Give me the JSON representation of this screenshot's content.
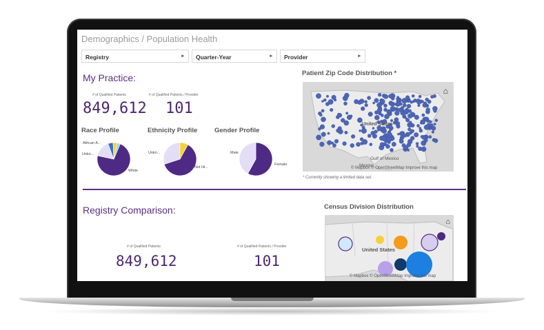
{
  "header": {
    "title": "Demographics / Population Health"
  },
  "filters": [
    {
      "label": "Registry"
    },
    {
      "label": "Quarter-Year"
    },
    {
      "label": "Provider"
    }
  ],
  "practice": {
    "title": "My Practice:",
    "kpi1": {
      "label": "# of Qualified Patients",
      "value": "849,612"
    },
    "kpi2": {
      "label": "# of Qualified Patients / Provider",
      "value": "101"
    }
  },
  "race": {
    "title": "Race Profile",
    "labels": [
      "African A...",
      "Unkn...",
      "White"
    ],
    "slices": [
      {
        "value": 0.72,
        "color": "#4e2a84"
      },
      {
        "value": 0.16,
        "color": "#e3def5"
      },
      {
        "value": 0.05,
        "color": "#3d6fc2"
      },
      {
        "value": 0.04,
        "color": "#f4d13b"
      },
      {
        "value": 0.03,
        "color": "#9fd3ec"
      }
    ]
  },
  "ethnicity": {
    "title": "Ethnicity Profile",
    "labels": [
      "Unkn...",
      "Not Hi..."
    ],
    "slices": [
      {
        "value": 0.62,
        "color": "#4e2a84"
      },
      {
        "value": 0.3,
        "color": "#e3def5"
      },
      {
        "value": 0.08,
        "color": "#f4d13b"
      }
    ]
  },
  "gender": {
    "title": "Gender Profile",
    "labels": [
      "Male",
      "Female"
    ],
    "slices": [
      {
        "value": 0.58,
        "color": "#4e2a84"
      },
      {
        "value": 0.42,
        "color": "#e3def5"
      }
    ]
  },
  "zip_map": {
    "title": "Patient Zip Code Distribution *",
    "overlay_labels": [
      "United States",
      "Gulf of Mexico",
      "Mexico"
    ],
    "attribution": "© Mapbox © OpenStreetMap Improve this map",
    "note": "* Currently showing a limited data set."
  },
  "registry": {
    "title": "Registry Comparison:",
    "kpi1": {
      "label": "# of Qualified Patients",
      "value": "849,612"
    },
    "kpi2": {
      "label": "# of Qualified Patients / Provider",
      "value": "101"
    }
  },
  "census_map": {
    "title": "Census Division Distribution",
    "overlay_label": "United States",
    "attribution": "© Mapbox © OpenStreetMap Improve this map"
  }
}
